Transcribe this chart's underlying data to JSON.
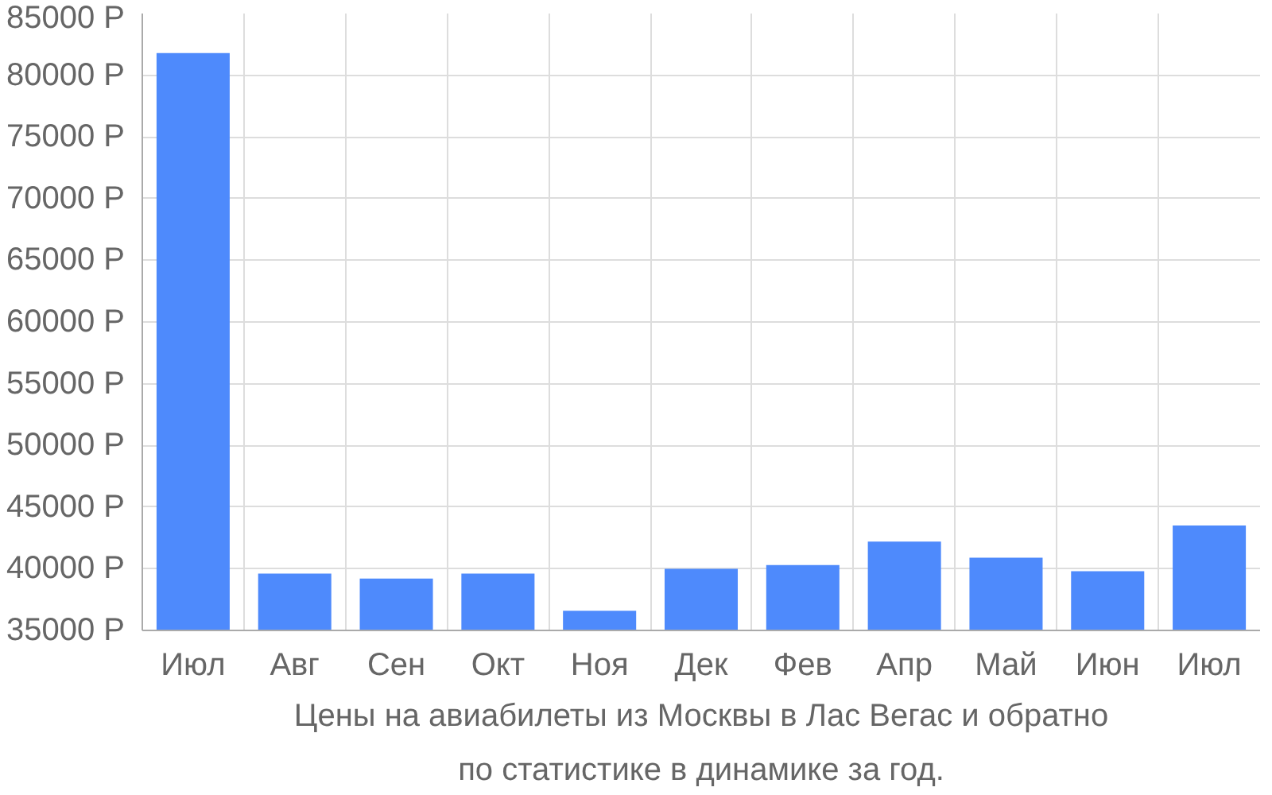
{
  "chart_data": {
    "type": "bar",
    "title": "Цены на авиабилеты из Москвы в Лас Вегас и обратно",
    "subtitle": "по статистике в динамике за год.",
    "categories": [
      "Июл",
      "Авг",
      "Сен",
      "Окт",
      "Ноя",
      "Дек",
      "Фев",
      "Апр",
      "Май",
      "Июн",
      "Июл"
    ],
    "values": [
      81800,
      39600,
      39200,
      39600,
      36600,
      40000,
      40300,
      42200,
      40900,
      39800,
      43500
    ],
    "color": "#4e8afc",
    "ylim": [
      35000,
      85000
    ],
    "yticks": [
      {
        "value": 35000,
        "label": "35000 Р"
      },
      {
        "value": 40000,
        "label": "40000 Р"
      },
      {
        "value": 45000,
        "label": "45000 Р"
      },
      {
        "value": 50000,
        "label": "50000 Р"
      },
      {
        "value": 55000,
        "label": "55000 Р"
      },
      {
        "value": 60000,
        "label": "60000 Р"
      },
      {
        "value": 65000,
        "label": "65000 Р"
      },
      {
        "value": 70000,
        "label": "70000 Р"
      },
      {
        "value": 75000,
        "label": "75000 Р"
      },
      {
        "value": 80000,
        "label": "80000 Р"
      },
      {
        "value": 85000,
        "label": "85000 Р"
      }
    ],
    "grid": true
  }
}
